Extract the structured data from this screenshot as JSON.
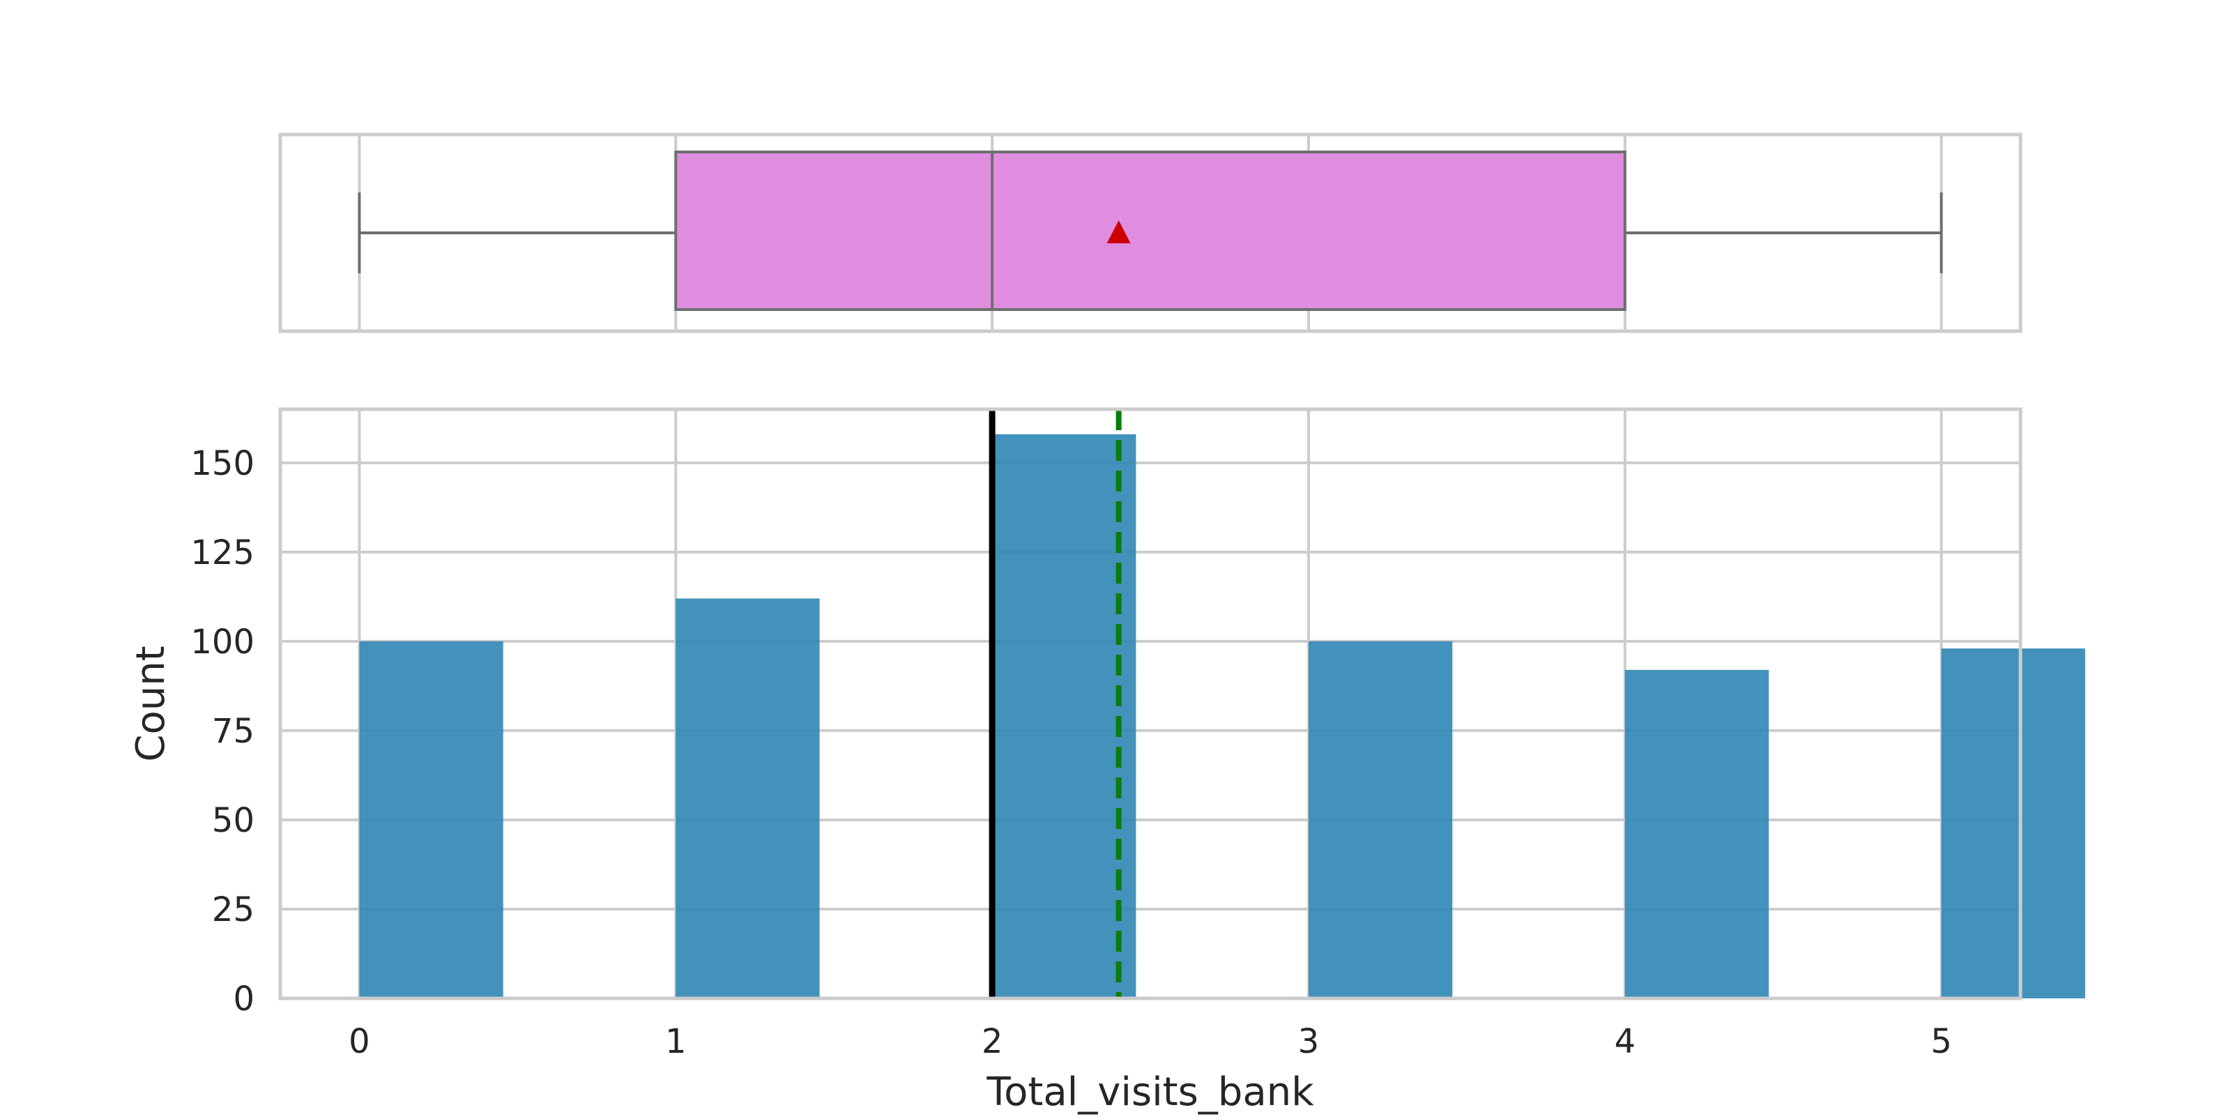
{
  "chart_data": [
    {
      "type": "box",
      "orientation": "horizontal",
      "min": 0,
      "q1": 1,
      "median": 2,
      "q3": 4,
      "max": 5,
      "mean": 2.4,
      "xlim": [
        -0.25,
        5.25
      ],
      "grid": true,
      "colors": {
        "box_fill": "#e08de0",
        "box_edge": "#6e6e6e",
        "mean_marker": "#cc0000"
      }
    },
    {
      "type": "bar",
      "xlabel": "Total_visits_bank",
      "ylabel": "Count",
      "xlim": [
        -0.25,
        5.25
      ],
      "ylim": [
        0,
        165
      ],
      "grid": true,
      "bin_width": 0.4545,
      "bins": [
        {
          "x": 0,
          "count": 100
        },
        {
          "x": 1,
          "count": 112
        },
        {
          "x": 2,
          "count": 158
        },
        {
          "x": 3,
          "count": 100
        },
        {
          "x": 4,
          "count": 92
        },
        {
          "x": 5,
          "count": 98
        }
      ],
      "xticks": [
        0,
        1,
        2,
        3,
        4,
        5
      ],
      "yticks": [
        0,
        25,
        50,
        75,
        100,
        125,
        150
      ],
      "median_line": 2,
      "mean_line": 2.4,
      "colors": {
        "bar": "#2f86b5",
        "median_line": "#000000",
        "mean_line": "#0a7d0a",
        "grid": "#cccccc",
        "spine": "#cccccc"
      }
    }
  ]
}
